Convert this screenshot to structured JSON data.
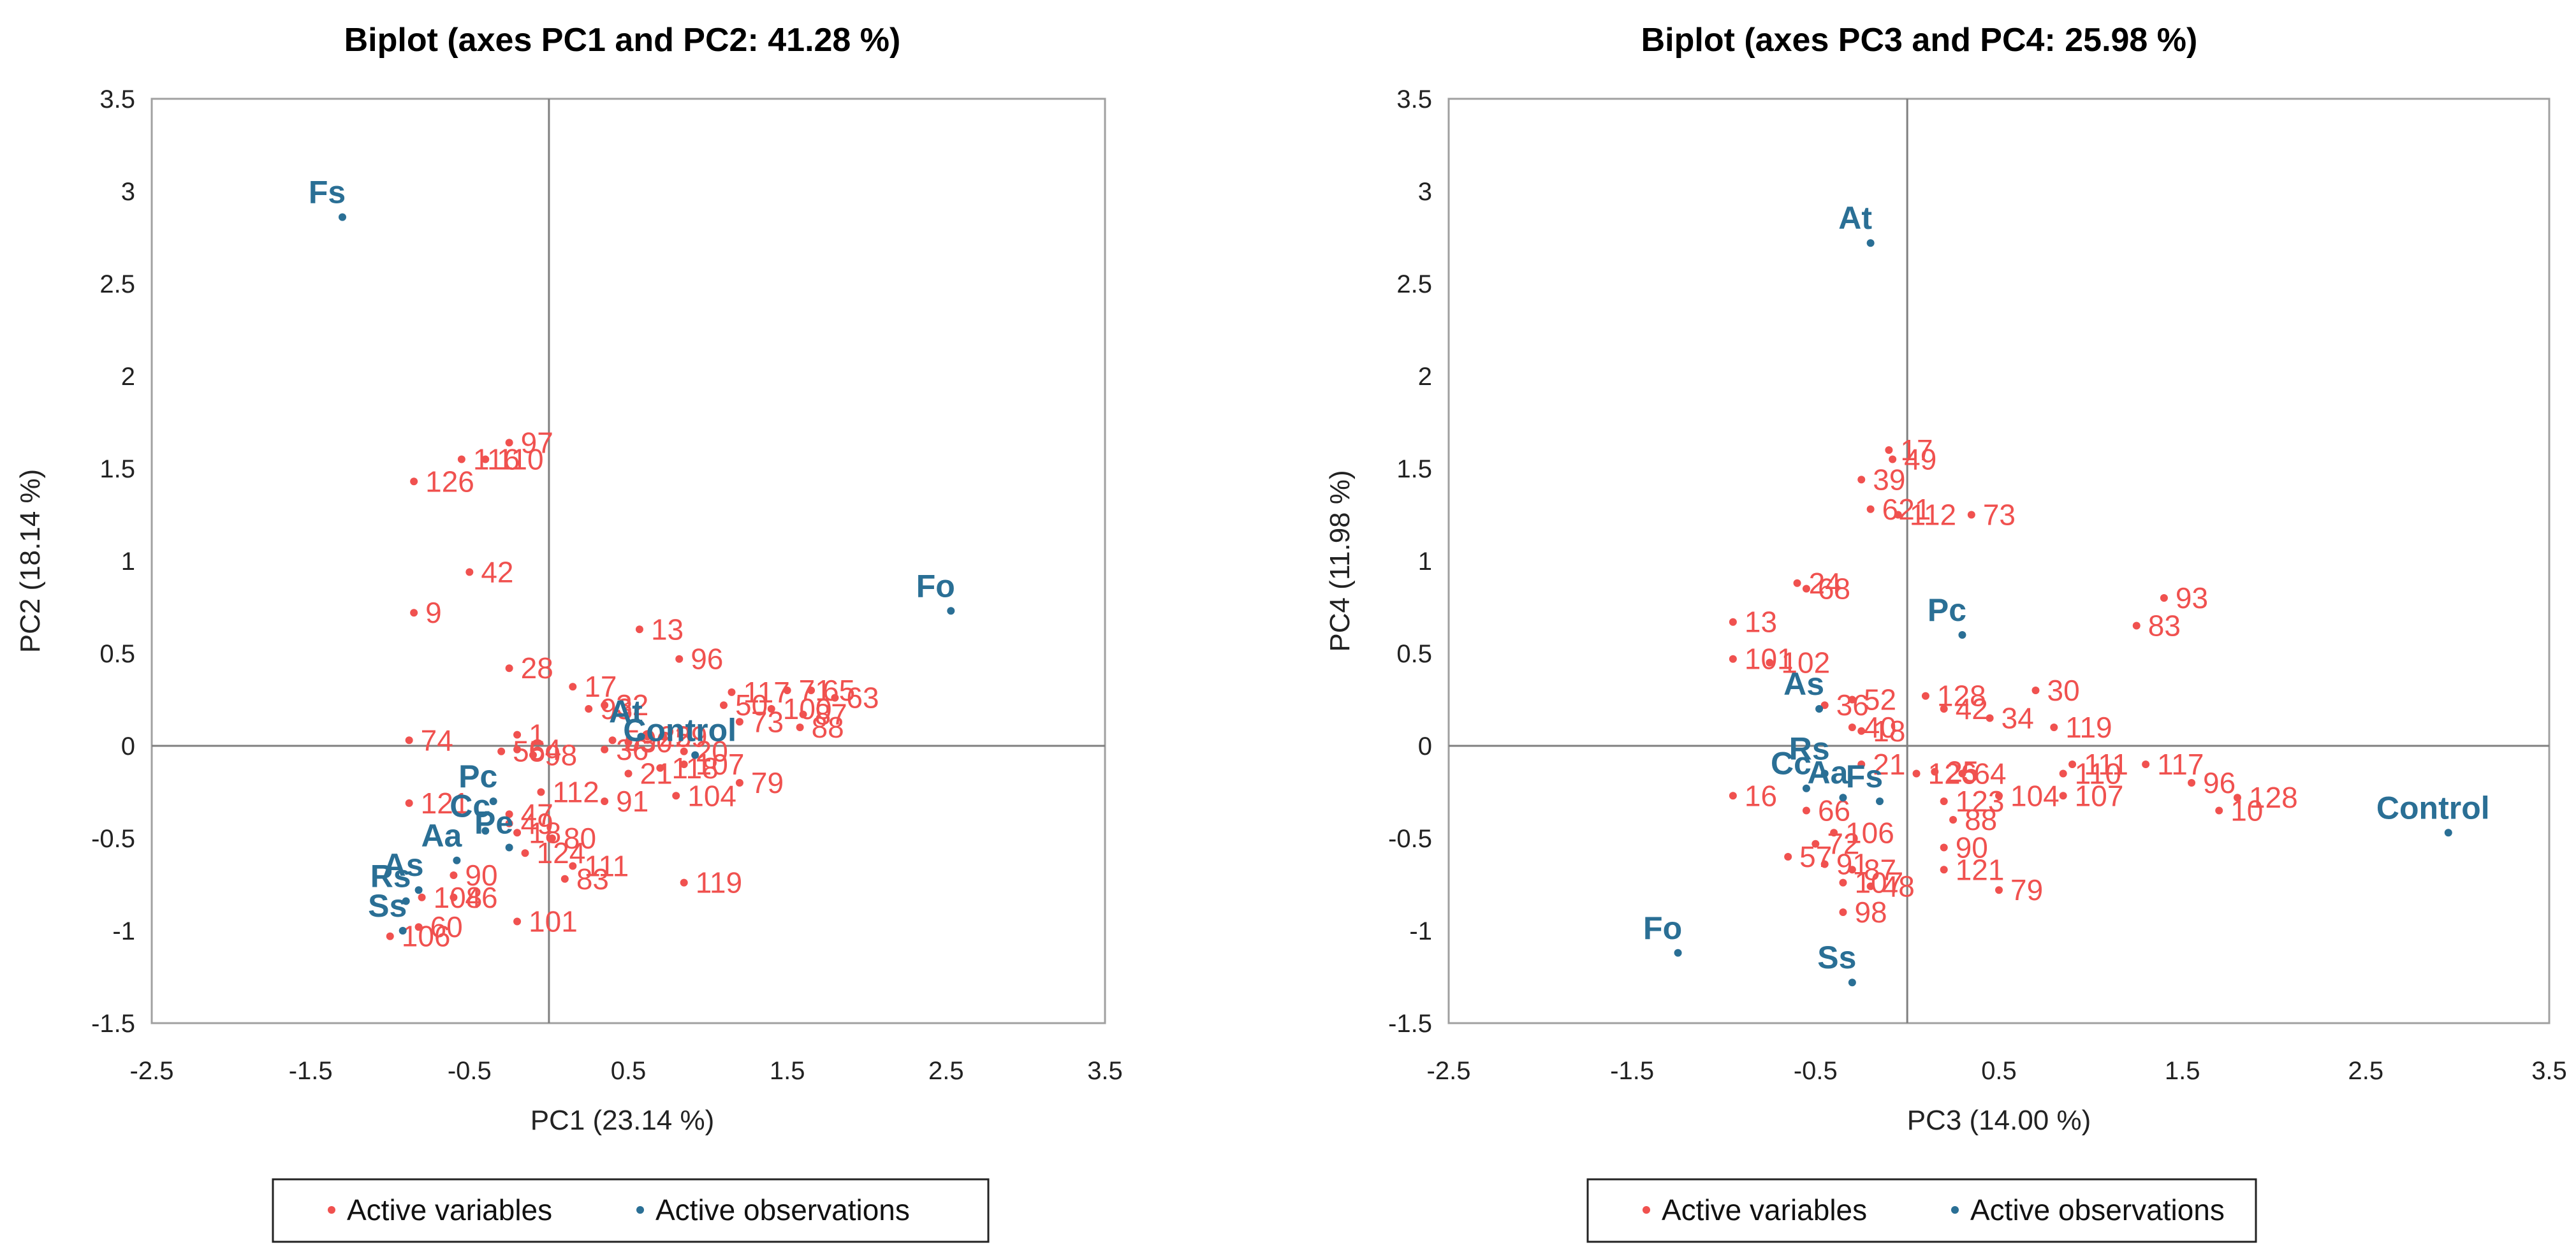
{
  "colors": {
    "variables": "#f0514f",
    "observations": "#2a6f95",
    "axis": "#7f7f7f",
    "frame": "#a0a0a0"
  },
  "chart_data": [
    {
      "type": "scatter",
      "title": "Biplot (axes PC1 and PC2: 41.28 %)",
      "xlabel": "PC1 (23.14 %)",
      "ylabel": "PC2 (18.14 %)",
      "xlim": [
        -2.5,
        3.5
      ],
      "ylim": [
        -1.5,
        3.5
      ],
      "xticks": [
        "-2.5",
        "-1.5",
        "-0.5",
        "0.5",
        "1.5",
        "2.5",
        "3.5"
      ],
      "yticks": [
        "-1.5",
        "-1",
        "-0.5",
        "0",
        "0.5",
        "1",
        "1.5",
        "2",
        "2.5",
        "3",
        "3.5"
      ],
      "legend": [
        "Active variables",
        "Active observations"
      ],
      "legend_position": "bottom",
      "series": [
        {
          "name": "Active variables",
          "points": [
            {
              "label": "97",
              "x": -0.25,
              "y": 1.64
            },
            {
              "label": "126",
              "x": -0.85,
              "y": 1.43
            },
            {
              "label": "116",
              "x": -0.55,
              "y": 1.55
            },
            {
              "label": "110",
              "x": -0.4,
              "y": 1.55
            },
            {
              "label": "42",
              "x": -0.5,
              "y": 0.94
            },
            {
              "label": "9",
              "x": -0.85,
              "y": 0.72
            },
            {
              "label": "13",
              "x": 0.57,
              "y": 0.63
            },
            {
              "label": "28",
              "x": -0.25,
              "y": 0.42
            },
            {
              "label": "96",
              "x": 0.82,
              "y": 0.47
            },
            {
              "label": "17",
              "x": 0.15,
              "y": 0.32
            },
            {
              "label": "93",
              "x": 0.25,
              "y": 0.2
            },
            {
              "label": "32",
              "x": 0.35,
              "y": 0.22
            },
            {
              "label": "117",
              "x": 1.15,
              "y": 0.29
            },
            {
              "label": "71",
              "x": 1.5,
              "y": 0.3
            },
            {
              "label": "65",
              "x": 1.65,
              "y": 0.3
            },
            {
              "label": "63",
              "x": 1.8,
              "y": 0.26
            },
            {
              "label": "50",
              "x": 1.1,
              "y": 0.22
            },
            {
              "label": "73",
              "x": 1.2,
              "y": 0.13
            },
            {
              "label": "100",
              "x": 1.4,
              "y": 0.2
            },
            {
              "label": "87",
              "x": 1.6,
              "y": 0.17
            },
            {
              "label": "88",
              "x": 1.58,
              "y": 0.1
            },
            {
              "label": "74",
              "x": -0.88,
              "y": 0.03
            },
            {
              "label": "1",
              "x": -0.2,
              "y": 0.06
            },
            {
              "label": "55",
              "x": -0.3,
              "y": -0.03
            },
            {
              "label": "64",
              "x": -0.2,
              "y": -0.02
            },
            {
              "label": "98",
              "x": -0.1,
              "y": -0.05
            },
            {
              "label": "36",
              "x": 0.35,
              "y": -0.02
            },
            {
              "label": "59",
              "x": 0.4,
              "y": 0.03
            },
            {
              "label": "30",
              "x": 0.5,
              "y": 0.02
            },
            {
              "label": "25",
              "x": 0.62,
              "y": 0.05
            },
            {
              "label": "29",
              "x": 0.72,
              "y": 0.05
            },
            {
              "label": "20",
              "x": 0.85,
              "y": -0.03
            },
            {
              "label": "107",
              "x": 0.85,
              "y": -0.1
            },
            {
              "label": "21",
              "x": 0.5,
              "y": -0.15
            },
            {
              "label": "118",
              "x": 0.7,
              "y": -0.12
            },
            {
              "label": "79",
              "x": 1.2,
              "y": -0.2
            },
            {
              "label": "104",
              "x": 0.8,
              "y": -0.27
            },
            {
              "label": "121",
              "x": -0.88,
              "y": -0.31
            },
            {
              "label": "112",
              "x": -0.05,
              "y": -0.25
            },
            {
              "label": "91",
              "x": 0.35,
              "y": -0.3
            },
            {
              "label": "47",
              "x": -0.25,
              "y": -0.37
            },
            {
              "label": "49",
              "x": -0.25,
              "y": -0.42
            },
            {
              "label": "18",
              "x": -0.2,
              "y": -0.47
            },
            {
              "label": "80",
              "x": 0.02,
              "y": -0.5
            },
            {
              "label": "124",
              "x": -0.15,
              "y": -0.58
            },
            {
              "label": "90",
              "x": -0.6,
              "y": -0.7
            },
            {
              "label": "111",
              "x": 0.15,
              "y": -0.65
            },
            {
              "label": "83",
              "x": 0.1,
              "y": -0.72
            },
            {
              "label": "108",
              "x": -0.8,
              "y": -0.82
            },
            {
              "label": "46",
              "x": -0.6,
              "y": -0.82
            },
            {
              "label": "101",
              "x": -0.2,
              "y": -0.95
            },
            {
              "label": "119",
              "x": 0.85,
              "y": -0.74
            },
            {
              "label": "60",
              "x": -0.82,
              "y": -0.98
            },
            {
              "label": "106",
              "x": -1.0,
              "y": -1.03
            }
          ]
        },
        {
          "name": "Active observations",
          "points": [
            {
              "label": "Fs",
              "x": -1.3,
              "y": 2.86
            },
            {
              "label": "Fo",
              "x": 2.53,
              "y": 0.73
            },
            {
              "label": "At",
              "x": 0.58,
              "y": 0.05
            },
            {
              "label": "Control",
              "x": 0.92,
              "y": -0.05
            },
            {
              "label": "Pc",
              "x": -0.35,
              "y": -0.3
            },
            {
              "label": "Cc",
              "x": -0.4,
              "y": -0.46
            },
            {
              "label": "Aa",
              "x": -0.58,
              "y": -0.62
            },
            {
              "label": "Pe",
              "x": -0.25,
              "y": -0.55
            },
            {
              "label": "As",
              "x": -0.82,
              "y": -0.78
            },
            {
              "label": "Rs",
              "x": -0.9,
              "y": -0.84
            },
            {
              "label": "Ss",
              "x": -0.92,
              "y": -1.0
            }
          ]
        }
      ]
    },
    {
      "type": "scatter",
      "title": "Biplot (axes PC3 and PC4: 25.98 %)",
      "xlabel": "PC3 (14.00 %)",
      "ylabel": "PC4 (11.98 %)",
      "xlim": [
        -2.5,
        3.5
      ],
      "ylim": [
        -1.5,
        3.5
      ],
      "xticks": [
        "-2.5",
        "-1.5",
        "-0.5",
        "0.5",
        "1.5",
        "2.5",
        "3.5"
      ],
      "yticks": [
        "-1.5",
        "-1",
        "-0.5",
        "0",
        "0.5",
        "1",
        "1.5",
        "2",
        "2.5",
        "3",
        "3.5"
      ],
      "legend": [
        "Active variables",
        "Active observations"
      ],
      "legend_position": "bottom",
      "series": [
        {
          "name": "Active variables",
          "points": [
            {
              "label": "17",
              "x": -0.1,
              "y": 1.6
            },
            {
              "label": "49",
              "x": -0.08,
              "y": 1.55
            },
            {
              "label": "39",
              "x": -0.25,
              "y": 1.44
            },
            {
              "label": "621",
              "x": -0.2,
              "y": 1.28
            },
            {
              "label": "112",
              "x": -0.05,
              "y": 1.25
            },
            {
              "label": "73",
              "x": 0.35,
              "y": 1.25
            },
            {
              "label": "24",
              "x": -0.6,
              "y": 0.88
            },
            {
              "label": "68",
              "x": -0.55,
              "y": 0.85
            },
            {
              "label": "93",
              "x": 1.4,
              "y": 0.8
            },
            {
              "label": "83",
              "x": 1.25,
              "y": 0.65
            },
            {
              "label": "13",
              "x": -0.95,
              "y": 0.67
            },
            {
              "label": "101",
              "x": -0.95,
              "y": 0.47
            },
            {
              "label": "102",
              "x": -0.75,
              "y": 0.45
            },
            {
              "label": "36",
              "x": -0.45,
              "y": 0.22
            },
            {
              "label": "52",
              "x": -0.3,
              "y": 0.25
            },
            {
              "label": "128",
              "x": 0.1,
              "y": 0.27
            },
            {
              "label": "42",
              "x": 0.2,
              "y": 0.2
            },
            {
              "label": "30",
              "x": 0.7,
              "y": 0.3
            },
            {
              "label": "34",
              "x": 0.45,
              "y": 0.15
            },
            {
              "label": "119",
              "x": 0.8,
              "y": 0.1
            },
            {
              "label": "40",
              "x": -0.3,
              "y": 0.1
            },
            {
              "label": "18",
              "x": -0.25,
              "y": 0.08
            },
            {
              "label": "21",
              "x": -0.25,
              "y": -0.1
            },
            {
              "label": "126",
              "x": 0.05,
              "y": -0.15
            },
            {
              "label": "25",
              "x": 0.15,
              "y": -0.14
            },
            {
              "label": "64",
              "x": 0.3,
              "y": -0.15
            },
            {
              "label": "111",
              "x": 0.9,
              "y": -0.1
            },
            {
              "label": "117",
              "x": 1.3,
              "y": -0.1
            },
            {
              "label": "110",
              "x": 0.85,
              "y": -0.15
            },
            {
              "label": "96",
              "x": 1.55,
              "y": -0.2
            },
            {
              "label": "16",
              "x": -0.95,
              "y": -0.27
            },
            {
              "label": "104",
              "x": 0.5,
              "y": -0.27
            },
            {
              "label": "107",
              "x": 0.85,
              "y": -0.27
            },
            {
              "label": "123",
              "x": 0.2,
              "y": -0.3
            },
            {
              "label": "128",
              "x": 1.8,
              "y": -0.28
            },
            {
              "label": "10",
              "x": 1.7,
              "y": -0.35
            },
            {
              "label": "66",
              "x": -0.55,
              "y": -0.35
            },
            {
              "label": "88",
              "x": 0.25,
              "y": -0.4
            },
            {
              "label": "72",
              "x": -0.5,
              "y": -0.53
            },
            {
              "label": "106",
              "x": -0.4,
              "y": -0.47
            },
            {
              "label": "90",
              "x": 0.2,
              "y": -0.55
            },
            {
              "label": "57",
              "x": -0.65,
              "y": -0.6
            },
            {
              "label": "91",
              "x": -0.45,
              "y": -0.64
            },
            {
              "label": "87",
              "x": -0.3,
              "y": -0.67
            },
            {
              "label": "121",
              "x": 0.2,
              "y": -0.67
            },
            {
              "label": "107",
              "x": -0.35,
              "y": -0.74
            },
            {
              "label": "48",
              "x": -0.2,
              "y": -0.76
            },
            {
              "label": "79",
              "x": 0.5,
              "y": -0.78
            },
            {
              "label": "98",
              "x": -0.35,
              "y": -0.9
            }
          ]
        },
        {
          "name": "Active observations",
          "points": [
            {
              "label": "At",
              "x": -0.2,
              "y": 2.72
            },
            {
              "label": "Pc",
              "x": 0.3,
              "y": 0.6
            },
            {
              "label": "As",
              "x": -0.48,
              "y": 0.2
            },
            {
              "label": "Control",
              "x": 2.95,
              "y": -0.47
            },
            {
              "label": "Fs",
              "x": -0.15,
              "y": -0.3
            },
            {
              "label": "Rs",
              "x": -0.45,
              "y": -0.15
            },
            {
              "label": "Cc",
              "x": -0.55,
              "y": -0.23
            },
            {
              "label": "Aa",
              "x": -0.35,
              "y": -0.28
            },
            {
              "label": "Fo",
              "x": -1.25,
              "y": -1.12
            },
            {
              "label": "Ss",
              "x": -0.3,
              "y": -1.28
            }
          ]
        }
      ]
    }
  ]
}
